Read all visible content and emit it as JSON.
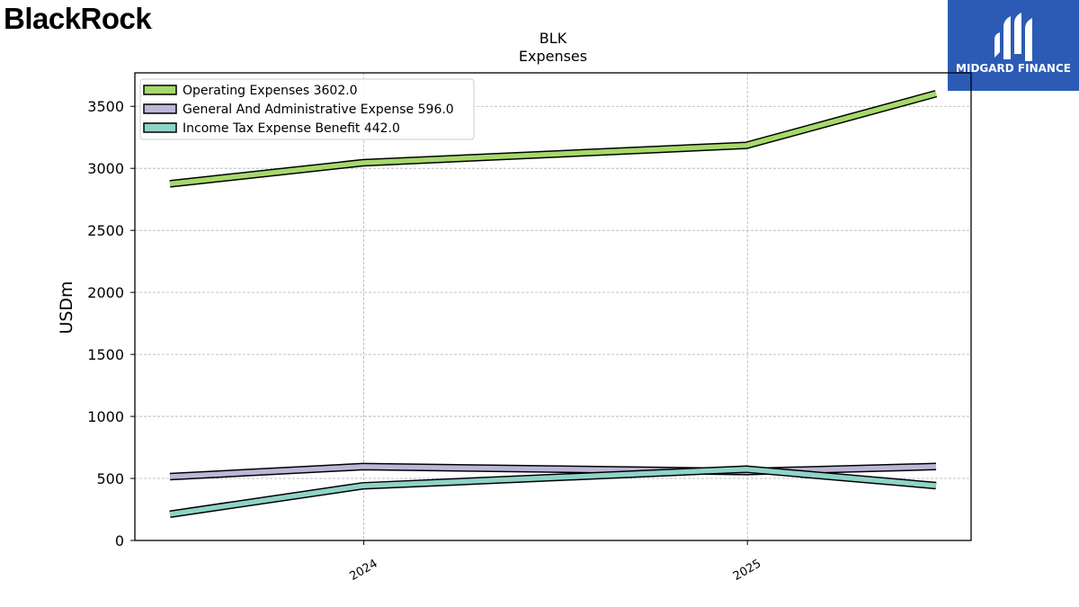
{
  "brand": {
    "logo_text": "BlackRock",
    "logo_mark": "."
  },
  "partner": {
    "name": "MIDGARD FINANCE",
    "bg_color": "#2b5bb5"
  },
  "chart_data": {
    "type": "line",
    "title": "BLK",
    "subtitle": "Expenses",
    "xlabel": "",
    "ylabel": "USDm",
    "x": [
      "2023-06-30",
      "2023-12-31",
      "2024-12-31",
      "2025-06-30"
    ],
    "xticks": [
      "2024",
      "2025"
    ],
    "yticks": [
      0,
      500,
      1000,
      1500,
      2000,
      2500,
      3000,
      3500
    ],
    "ylim": [
      0,
      3770
    ],
    "grid": true,
    "legend_position": "top-left",
    "series": [
      {
        "name": "Operating Expenses",
        "last_label": "3602.0",
        "color": "#a6d96a",
        "values": [
          2875,
          3045,
          3185,
          3602
        ]
      },
      {
        "name": "General And Administrative Expense",
        "last_label": "596.0",
        "color": "#bcb6d8",
        "values": [
          515,
          595,
          555,
          596
        ]
      },
      {
        "name": "Income Tax Expense Benefit",
        "last_label": "442.0",
        "color": "#8fd3c7",
        "values": [
          212,
          440,
          575,
          442
        ]
      }
    ]
  }
}
